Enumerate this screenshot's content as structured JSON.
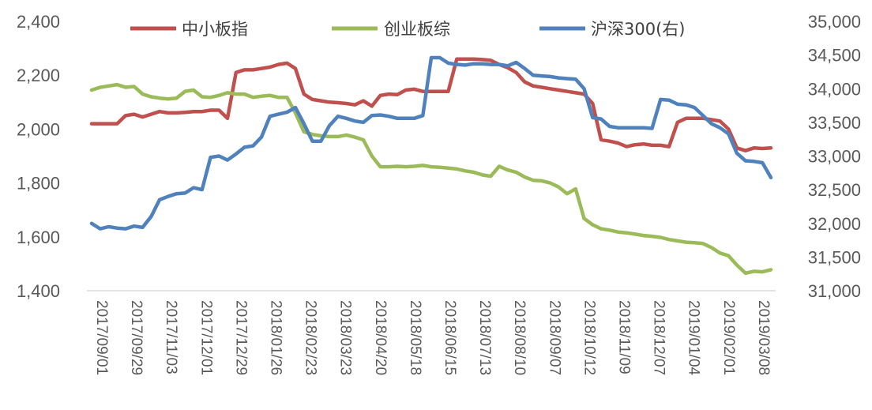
{
  "chart_data": {
    "type": "line",
    "title": "",
    "legend": {
      "placement": "top"
    },
    "grid": false,
    "y_left": {
      "ticks": [
        "2,400",
        "2,200",
        "2,000",
        "1,800",
        "1,600",
        "1,400"
      ],
      "range": [
        1400,
        2400
      ]
    },
    "y_right": {
      "ticks": [
        "35,000",
        "34,500",
        "34,000",
        "33,500",
        "33,000",
        "32,500",
        "32,000",
        "31,500",
        "31,000"
      ],
      "range": [
        31000,
        35000
      ]
    },
    "x": {
      "ticks": [
        "2017/09/01",
        "2017/09/29",
        "2017/11/03",
        "2017/12/01",
        "2017/12/29",
        "2018/01/26",
        "2018/02/23",
        "2018/03/23",
        "2018/04/20",
        "2018/05/18",
        "2018/06/15",
        "2018/07/13",
        "2018/08/10",
        "2018/09/07",
        "2018/10/12",
        "2018/11/09",
        "2018/12/07",
        "2019/01/04",
        "2019/02/01",
        "2019/03/08"
      ],
      "points": 81
    },
    "series": [
      {
        "name": "中小板指",
        "color": "#c0504d",
        "axis": "left",
        "values": [
          2020,
          2020,
          2020,
          2020,
          2050,
          2055,
          2045,
          2055,
          2065,
          2060,
          2060,
          2062,
          2065,
          2065,
          2070,
          2070,
          2040,
          2210,
          2220,
          2220,
          2225,
          2230,
          2240,
          2245,
          2225,
          2130,
          2110,
          2105,
          2100,
          2098,
          2095,
          2090,
          2105,
          2085,
          2125,
          2130,
          2128,
          2145,
          2148,
          2140,
          2140,
          2140,
          2140,
          2260,
          2260,
          2260,
          2258,
          2255,
          2240,
          2228,
          2210,
          2175,
          2160,
          2155,
          2150,
          2145,
          2140,
          2135,
          2130,
          2095,
          1960,
          1955,
          1948,
          1935,
          1942,
          1945,
          1940,
          1940,
          1935,
          2025,
          2040,
          2040,
          2040,
          2035,
          2030,
          2000,
          1930,
          1920,
          1930,
          1928,
          1930
        ]
      },
      {
        "name": "创业板综",
        "color": "#9bbb59",
        "axis": "left",
        "values": [
          2145,
          2155,
          2160,
          2165,
          2155,
          2158,
          2130,
          2120,
          2115,
          2112,
          2115,
          2140,
          2145,
          2120,
          2118,
          2125,
          2135,
          2130,
          2130,
          2118,
          2122,
          2125,
          2118,
          2118,
          2060,
          1990,
          1980,
          1975,
          1972,
          1972,
          1978,
          1970,
          1960,
          1900,
          1860,
          1860,
          1862,
          1860,
          1862,
          1865,
          1860,
          1858,
          1855,
          1852,
          1845,
          1840,
          1830,
          1825,
          1862,
          1848,
          1840,
          1822,
          1810,
          1808,
          1800,
          1785,
          1760,
          1778,
          1668,
          1645,
          1630,
          1625,
          1618,
          1615,
          1610,
          1605,
          1602,
          1598,
          1590,
          1585,
          1580,
          1578,
          1575,
          1560,
          1540,
          1530,
          1495,
          1465,
          1472,
          1470,
          1478
        ]
      },
      {
        "name": "沪深300(右)",
        "color": "#4f81bd",
        "axis": "right",
        "values": [
          32000,
          31920,
          31950,
          31930,
          31920,
          31960,
          31940,
          32100,
          32350,
          32400,
          32440,
          32450,
          32530,
          32500,
          32980,
          33000,
          32940,
          33030,
          33130,
          33150,
          33280,
          33590,
          33620,
          33650,
          33720,
          33480,
          33220,
          33220,
          33450,
          33590,
          33560,
          33520,
          33500,
          33600,
          33610,
          33590,
          33560,
          33560,
          33560,
          33600,
          34460,
          34460,
          34380,
          34360,
          34350,
          34370,
          34370,
          34360,
          34360,
          34340,
          34390,
          34300,
          34200,
          34190,
          34180,
          34160,
          34150,
          34140,
          34000,
          33570,
          33550,
          33440,
          33420,
          33420,
          33420,
          33420,
          33410,
          33840,
          33830,
          33770,
          33760,
          33720,
          33600,
          33480,
          33420,
          33330,
          33040,
          32930,
          32920,
          32900,
          32680
        ]
      }
    ]
  }
}
